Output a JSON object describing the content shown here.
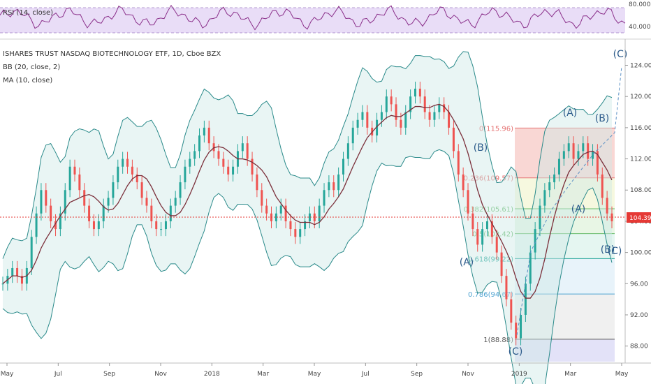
{
  "chart_data": {
    "type": "candlestick",
    "title": "ISHARES TRUST NASDAQ BIOTECHNOLOGY ETF, 1D, Cboe BZX",
    "indicators": [
      "BB (20, close, 2)",
      "MA (10, close)"
    ],
    "rsi_label": "RSI (14, close)",
    "rsi_ticks": [
      "80.0000",
      "40.0000"
    ],
    "x_ticks": [
      "May",
      "Jul",
      "Sep",
      "Nov",
      "2018",
      "Mar",
      "May",
      "Jul",
      "Sep",
      "Nov",
      "2019",
      "Mar",
      "May"
    ],
    "y_ticks": [
      "124.00",
      "120.00",
      "116.00",
      "112.00",
      "108.00",
      "104.00",
      "100.00",
      "96.00",
      "92.00",
      "88.00"
    ],
    "ylim": [
      86,
      127
    ],
    "last_price": "104.39",
    "close_series": [
      96,
      97,
      98,
      97,
      96,
      98,
      102,
      105,
      108,
      106,
      104,
      103,
      105,
      108,
      111,
      110,
      108,
      106,
      104,
      103,
      104,
      106,
      107,
      109,
      111,
      112,
      111,
      110,
      109,
      107,
      106,
      104,
      103,
      103,
      104,
      106,
      107,
      109,
      111,
      112,
      113,
      115,
      116,
      114,
      113,
      112,
      111,
      110,
      111,
      113,
      114,
      112,
      110,
      108,
      106,
      105,
      104,
      105,
      106,
      104,
      103,
      102,
      103,
      104,
      105,
      104,
      106,
      108,
      109,
      108,
      110,
      112,
      114,
      116,
      117,
      118,
      116,
      115,
      117,
      118,
      120,
      119,
      117,
      116,
      118,
      120,
      121,
      120,
      118,
      117,
      118,
      119,
      118,
      116,
      113,
      110,
      108,
      105,
      103,
      101,
      103,
      104,
      102,
      100,
      97,
      94,
      91,
      89,
      92,
      96,
      100,
      103,
      106,
      108,
      109,
      110,
      112,
      113,
      114,
      112,
      113,
      114,
      112,
      113,
      110,
      107,
      105,
      104
    ],
    "fibonacci": [
      {
        "label": "0(115.96)",
        "value": 115.96,
        "color": "#e57373"
      },
      {
        "label": "0.236(109.57)",
        "value": 109.57,
        "color": "#e57373"
      },
      {
        "label": "0.382(105.61)",
        "value": 105.61,
        "color": "#66bb6a"
      },
      {
        "label": "0.5(102.42)",
        "value": 102.42,
        "color": "#66bb6a"
      },
      {
        "label": "0.618(99.22)",
        "value": 99.22,
        "color": "#26a69a"
      },
      {
        "label": "0.786(94.67)",
        "value": 94.67,
        "color": "#4fa3d1"
      },
      {
        "label": "1(88.88)",
        "value": 88.88,
        "color": "#555555"
      }
    ],
    "wave_labels": [
      "(A)",
      "(B)",
      "(C)",
      "(A)",
      "(B)",
      "(A)",
      "(B)",
      "(C)",
      "(C)"
    ]
  }
}
